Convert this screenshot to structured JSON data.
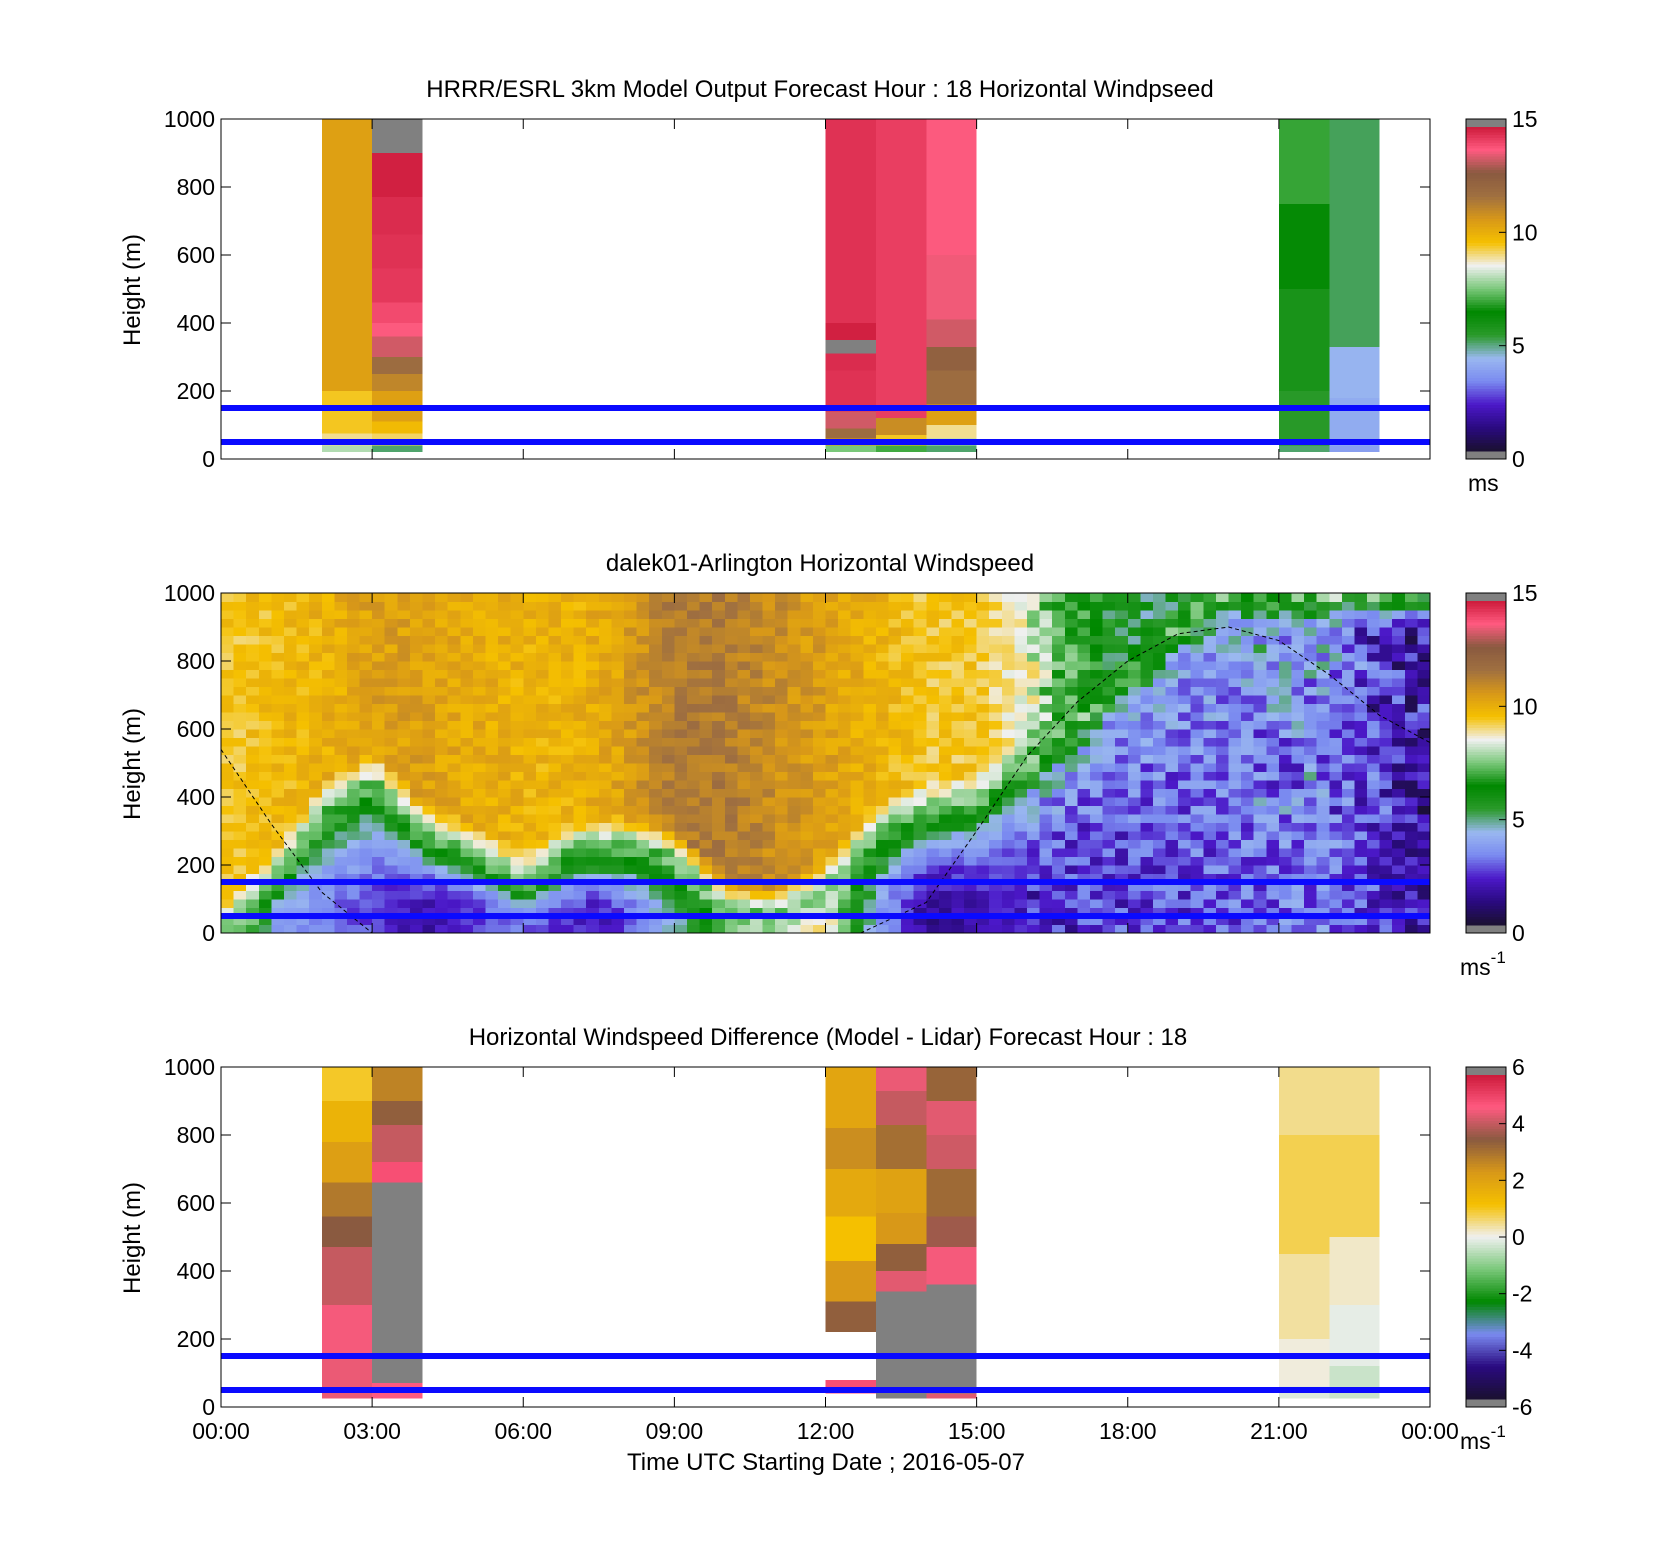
{
  "colors": {
    "background": "#ffffff",
    "reference_lines": "#0a0aff",
    "missing_data": "#808080",
    "frame": "#000000"
  },
  "colormap_speed": [
    "#1a1030",
    "#2a0a80",
    "#4b18c8",
    "#7a8af0",
    "#9ab8f0",
    "#2a9a2a",
    "#008800",
    "#7ac87a",
    "#f0f0f0",
    "#f5c000",
    "#d89818",
    "#a07040",
    "#8a5a40",
    "#ff5a80",
    "#cc1a3a"
  ],
  "colormap_diff": [
    "#1a1030",
    "#2a0a80",
    "#7a8af0",
    "#008800",
    "#7ac87a",
    "#f0f0f0",
    "#f5c000",
    "#d89818",
    "#8a5a40",
    "#ff5a80",
    "#cc1a3a"
  ],
  "chart_data": [
    {
      "id": "model",
      "type": "heatmap",
      "title": "HRRR/ESRL 3km Model Output   Forecast Hour : 18 Horizontal Windpseed",
      "xlabel": "",
      "ylabel": "Height (m)",
      "xlim": [
        0,
        24
      ],
      "ylim": [
        0,
        1000
      ],
      "yticks": [
        0,
        200,
        400,
        600,
        800,
        1000
      ],
      "ytick_labels": [
        "0",
        "200",
        "400",
        "600",
        "800",
        "1000"
      ],
      "grid": false,
      "colorbar": {
        "min": 0,
        "max": 15,
        "ticks": [
          "0",
          "5",
          "10",
          "15"
        ],
        "unit_main": "ms",
        "unit_sup": ""
      },
      "reference_lines_m": [
        50,
        150
      ],
      "columns": [
        {
          "t0": 2.0,
          "t1": 3.0,
          "levels": [
            [
              20,
              40,
              8.0
            ],
            [
              40,
              75,
              9.0
            ],
            [
              75,
              110,
              9.5
            ],
            [
              110,
              200,
              9.5
            ],
            [
              200,
              1000,
              10.5
            ]
          ]
        },
        {
          "t0": 3.0,
          "t1": 4.0,
          "levels": [
            [
              20,
              40,
              5.0
            ],
            [
              40,
              75,
              9.2
            ],
            [
              75,
              110,
              9.8
            ],
            [
              110,
              200,
              10.5
            ],
            [
              200,
              250,
              11.2
            ],
            [
              250,
              300,
              12.0
            ],
            [
              300,
              360,
              13.5
            ],
            [
              360,
              400,
              13.9
            ],
            [
              400,
              460,
              14.2
            ],
            [
              460,
              560,
              14.5
            ],
            [
              560,
              660,
              14.6
            ],
            [
              660,
              770,
              14.7
            ],
            [
              770,
              900,
              14.9
            ],
            [
              900,
              1000,
              null
            ]
          ]
        },
        {
          "t0": 12.0,
          "t1": 13.0,
          "levels": [
            [
              20,
              40,
              7.5
            ],
            [
              40,
              60,
              10.5
            ],
            [
              60,
              90,
              12.0
            ],
            [
              90,
              140,
              13.5
            ],
            [
              140,
              260,
              14.6
            ],
            [
              260,
              310,
              14.7
            ],
            [
              310,
              350,
              null
            ],
            [
              350,
              400,
              14.9
            ],
            [
              400,
              1000,
              14.6
            ]
          ]
        },
        {
          "t0": 13.0,
          "t1": 14.0,
          "levels": [
            [
              20,
              40,
              7.0
            ],
            [
              40,
              70,
              9.5
            ],
            [
              70,
              120,
              11.0
            ],
            [
              120,
              1000,
              14.4
            ]
          ]
        },
        {
          "t0": 14.0,
          "t1": 15.0,
          "levels": [
            [
              20,
              40,
              5.0
            ],
            [
              40,
              60,
              8.0
            ],
            [
              60,
              100,
              9.0
            ],
            [
              100,
              160,
              10.5
            ],
            [
              160,
              260,
              12.0
            ],
            [
              260,
              330,
              12.5
            ],
            [
              330,
              410,
              13.5
            ],
            [
              410,
              600,
              13.8
            ],
            [
              600,
              1000,
              13.9
            ]
          ]
        },
        {
          "t0": 21.0,
          "t1": 22.0,
          "levels": [
            [
              20,
              40,
              5.0
            ],
            [
              40,
              200,
              5.4
            ],
            [
              200,
              500,
              5.8
            ],
            [
              500,
              750,
              6.3
            ],
            [
              750,
              1000,
              6.9
            ]
          ]
        },
        {
          "t0": 22.0,
          "t1": 23.0,
          "levels": [
            [
              20,
              40,
              3.7
            ],
            [
              40,
              180,
              4.0
            ],
            [
              180,
              330,
              4.2
            ],
            [
              330,
              1000,
              5.1
            ]
          ]
        }
      ]
    },
    {
      "id": "lidar",
      "type": "heatmap",
      "title": "dalek01-Arlington  Horizontal Windspeed",
      "xlabel": "",
      "ylabel": "Height (m)",
      "xlim": [
        0,
        24
      ],
      "ylim": [
        0,
        1000
      ],
      "yticks": [
        0,
        200,
        400,
        600,
        800,
        1000
      ],
      "ytick_labels": [
        "0",
        "200",
        "400",
        "600",
        "800",
        "1000"
      ],
      "grid": false,
      "colorbar": {
        "min": 0,
        "max": 15,
        "ticks": [
          "0",
          "5",
          "10",
          "15"
        ],
        "unit_main": "ms",
        "unit_sup": "-1"
      },
      "reference_lines_m": [
        50,
        150
      ],
      "boundary_layer_height_m": [
        [
          0,
          540
        ],
        [
          1,
          320
        ],
        [
          2,
          120
        ],
        [
          3,
          0
        ],
        [
          12.7,
          0
        ],
        [
          14,
          90
        ],
        [
          15,
          300
        ],
        [
          16,
          520
        ],
        [
          17,
          680
        ],
        [
          18,
          800
        ],
        [
          19,
          880
        ],
        [
          20,
          900
        ],
        [
          21,
          860
        ],
        [
          22,
          760
        ],
        [
          23,
          640
        ],
        [
          24,
          560
        ]
      ],
      "low_level_speed": [
        [
          0,
          8.5
        ],
        [
          0.6,
          7.0
        ],
        [
          1.0,
          4.0
        ],
        [
          2.0,
          3.0
        ],
        [
          3.0,
          2.5
        ],
        [
          4.0,
          1.5
        ],
        [
          6.0,
          3.0
        ],
        [
          7.5,
          1.8
        ],
        [
          9.0,
          4.5
        ],
        [
          10.5,
          8.5
        ],
        [
          12.0,
          9.0
        ],
        [
          13.0,
          4.0
        ],
        [
          14.0,
          1.3
        ],
        [
          16.0,
          2.0
        ],
        [
          18.0,
          2.5
        ],
        [
          20.0,
          2.8
        ],
        [
          22.0,
          3.2
        ],
        [
          24.0,
          1.5
        ]
      ],
      "mixed_layer_top_m": [
        [
          0,
          0
        ],
        [
          1,
          150
        ],
        [
          2,
          350
        ],
        [
          3,
          450
        ],
        [
          4,
          300
        ],
        [
          5,
          240
        ],
        [
          6,
          150
        ],
        [
          7,
          250
        ],
        [
          8,
          260
        ],
        [
          9,
          230
        ],
        [
          10,
          80
        ],
        [
          11,
          50
        ],
        [
          12,
          120
        ],
        [
          13,
          300
        ],
        [
          14,
          360
        ],
        [
          15,
          380
        ],
        [
          16,
          500
        ],
        [
          17,
          620
        ],
        [
          18,
          750
        ],
        [
          19,
          900
        ],
        [
          20,
          1000
        ],
        [
          24,
          1000
        ]
      ],
      "upper_speed": [
        [
          0,
          9.5
        ],
        [
          2,
          10.0
        ],
        [
          3,
          10.5
        ],
        [
          4,
          10.5
        ],
        [
          6,
          10.0
        ],
        [
          7,
          10.0
        ],
        [
          8,
          10.5
        ],
        [
          9,
          11.5
        ],
        [
          10,
          11.5
        ],
        [
          11,
          11.0
        ],
        [
          12,
          10.5
        ],
        [
          13,
          10.0
        ],
        [
          14,
          9.5
        ],
        [
          15,
          9.5
        ],
        [
          16,
          8.5
        ],
        [
          17,
          6.5
        ],
        [
          18,
          5.5
        ],
        [
          20,
          5.3
        ],
        [
          21,
          5.0
        ],
        [
          22,
          4.0
        ],
        [
          23,
          2.2
        ],
        [
          24,
          1.5
        ]
      ]
    },
    {
      "id": "difference",
      "type": "heatmap",
      "title": "Horizontal Windspeed Difference (Model - Lidar) Forecast Hour : 18",
      "xlabel": "Time UTC  Starting Date ; 2016-05-07",
      "ylabel": "Height (m)",
      "xlim": [
        0,
        24
      ],
      "ylim": [
        0,
        1000
      ],
      "xticks": [
        0,
        3,
        6,
        9,
        12,
        15,
        18,
        21,
        24
      ],
      "xtick_labels": [
        "00:00",
        "03:00",
        "06:00",
        "09:00",
        "12:00",
        "15:00",
        "18:00",
        "21:00",
        "00:00"
      ],
      "yticks": [
        0,
        200,
        400,
        600,
        800,
        1000
      ],
      "ytick_labels": [
        "0",
        "200",
        "400",
        "600",
        "800",
        "1000"
      ],
      "grid": false,
      "colorbar": {
        "min": -6,
        "max": 6,
        "ticks": [
          "-6",
          "-4",
          "-2",
          "0",
          "2",
          "4",
          "6"
        ],
        "unit_main": "ms",
        "unit_sup": "-1"
      },
      "reference_lines_m": [
        50,
        150
      ],
      "columns": [
        {
          "t0": 2.0,
          "t1": 3.0,
          "levels": [
            [
              25,
              150,
              4.6
            ],
            [
              150,
              300,
              4.7
            ],
            [
              300,
              470,
              4.2
            ],
            [
              470,
              560,
              3.6
            ],
            [
              560,
              660,
              3.0
            ],
            [
              660,
              780,
              2.2
            ],
            [
              780,
              900,
              1.6
            ],
            [
              900,
              1000,
              1.0
            ]
          ]
        },
        {
          "t0": 3.0,
          "t1": 4.0,
          "levels": [
            [
              25,
              70,
              4.8
            ],
            [
              70,
              660,
              null
            ],
            [
              660,
              720,
              5.0
            ],
            [
              720,
              830,
              4.2
            ],
            [
              830,
              900,
              3.5
            ],
            [
              900,
              1000,
              2.8
            ]
          ]
        },
        {
          "t0": 12.0,
          "t1": 13.0,
          "levels": [
            [
              40,
              80,
              5.0
            ],
            [
              220,
              310,
              3.5
            ],
            [
              310,
              430,
              2.4
            ],
            [
              430,
              560,
              1.2
            ],
            [
              560,
              700,
              1.9
            ],
            [
              700,
              820,
              2.6
            ],
            [
              820,
              1000,
              2.0
            ]
          ]
        },
        {
          "t0": 13.0,
          "t1": 14.0,
          "levels": [
            [
              25,
              340,
              null
            ],
            [
              340,
              400,
              4.5
            ],
            [
              400,
              480,
              3.5
            ],
            [
              480,
              570,
              2.4
            ],
            [
              570,
              700,
              2.1
            ],
            [
              700,
              830,
              3.2
            ],
            [
              830,
              930,
              4.2
            ],
            [
              930,
              1000,
              4.6
            ]
          ]
        },
        {
          "t0": 14.0,
          "t1": 15.0,
          "levels": [
            [
              25,
              40,
              4.5
            ],
            [
              40,
              360,
              null
            ],
            [
              360,
              470,
              4.7
            ],
            [
              470,
              560,
              3.8
            ],
            [
              560,
              700,
              3.3
            ],
            [
              700,
              800,
              4.3
            ],
            [
              800,
              900,
              4.5
            ],
            [
              900,
              1000,
              3.4
            ]
          ]
        },
        {
          "t0": 21.0,
          "t1": 22.0,
          "levels": [
            [
              25,
              60,
              -0.2
            ],
            [
              60,
              200,
              0.1
            ],
            [
              200,
              450,
              0.4
            ],
            [
              450,
              800,
              0.8
            ],
            [
              800,
              1000,
              0.5
            ]
          ]
        },
        {
          "t0": 22.0,
          "t1": 23.0,
          "levels": [
            [
              25,
              120,
              -0.4
            ],
            [
              120,
              300,
              -0.1
            ],
            [
              300,
              500,
              0.2
            ],
            [
              500,
              800,
              0.8
            ],
            [
              800,
              1000,
              0.5
            ]
          ]
        }
      ]
    }
  ]
}
